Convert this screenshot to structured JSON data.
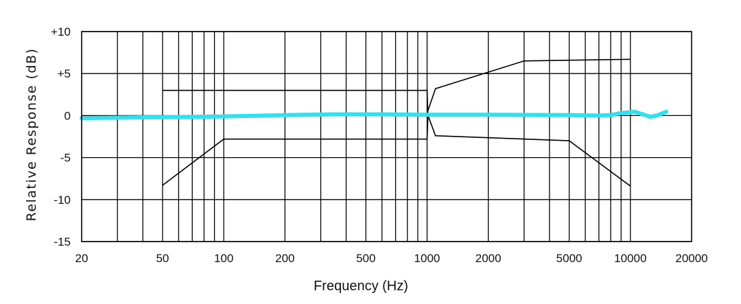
{
  "chart_data": {
    "type": "line",
    "xlabel": "Frequency (Hz)",
    "ylabel": "Relative Response (dB)",
    "x_scale": "log",
    "xlim": [
      20,
      20000
    ],
    "ylim": [
      -15,
      10
    ],
    "x_ticks": [
      {
        "value": 20,
        "label": "20"
      },
      {
        "value": 50,
        "label": "50"
      },
      {
        "value": 100,
        "label": "100"
      },
      {
        "value": 200,
        "label": "200"
      },
      {
        "value": 500,
        "label": "500"
      },
      {
        "value": 1000,
        "label": "1000"
      },
      {
        "value": 2000,
        "label": "2000"
      },
      {
        "value": 5000,
        "label": "5000"
      },
      {
        "value": 10000,
        "label": "10000"
      },
      {
        "value": 20000,
        "label": "20000"
      }
    ],
    "y_ticks": [
      {
        "value": 10,
        "label": "+10"
      },
      {
        "value": 5,
        "label": "+5"
      },
      {
        "value": 0,
        "label": "0"
      },
      {
        "value": -5,
        "label": "-5"
      },
      {
        "value": -10,
        "label": "-10"
      },
      {
        "value": -15,
        "label": "-15"
      }
    ],
    "grid": true,
    "series": [
      {
        "color": "#33e0f0",
        "points": [
          [
            20,
            -0.3
          ],
          [
            30,
            -0.25
          ],
          [
            50,
            -0.2
          ],
          [
            100,
            -0.1
          ],
          [
            200,
            0.05
          ],
          [
            350,
            0.15
          ],
          [
            600,
            0.15
          ],
          [
            1000,
            0.1
          ],
          [
            2000,
            0.1
          ],
          [
            5000,
            0.05
          ],
          [
            7000,
            0.0
          ],
          [
            8000,
            0.05
          ],
          [
            9000,
            0.3
          ],
          [
            10500,
            0.45
          ],
          [
            11500,
            0.15
          ],
          [
            12500,
            -0.15
          ],
          [
            13500,
            0.0
          ],
          [
            15000,
            0.45
          ]
        ]
      }
    ],
    "tolerance_lines": [
      {
        "points": [
          [
            50,
            3.0
          ],
          [
            1000,
            3.0
          ],
          [
            1010,
            -0.1
          ]
        ]
      },
      {
        "points": [
          [
            50,
            -8.3
          ],
          [
            100,
            -2.8
          ],
          [
            1000,
            -2.8
          ],
          [
            1010,
            -0.1
          ]
        ]
      },
      {
        "points": [
          [
            1000,
            0.3
          ],
          [
            1100,
            3.2
          ],
          [
            3000,
            6.5
          ],
          [
            10000,
            6.7
          ]
        ]
      },
      {
        "points": [
          [
            1000,
            0.3
          ],
          [
            1100,
            -2.4
          ],
          [
            5000,
            -3.0
          ],
          [
            10000,
            -8.4
          ]
        ]
      }
    ]
  }
}
